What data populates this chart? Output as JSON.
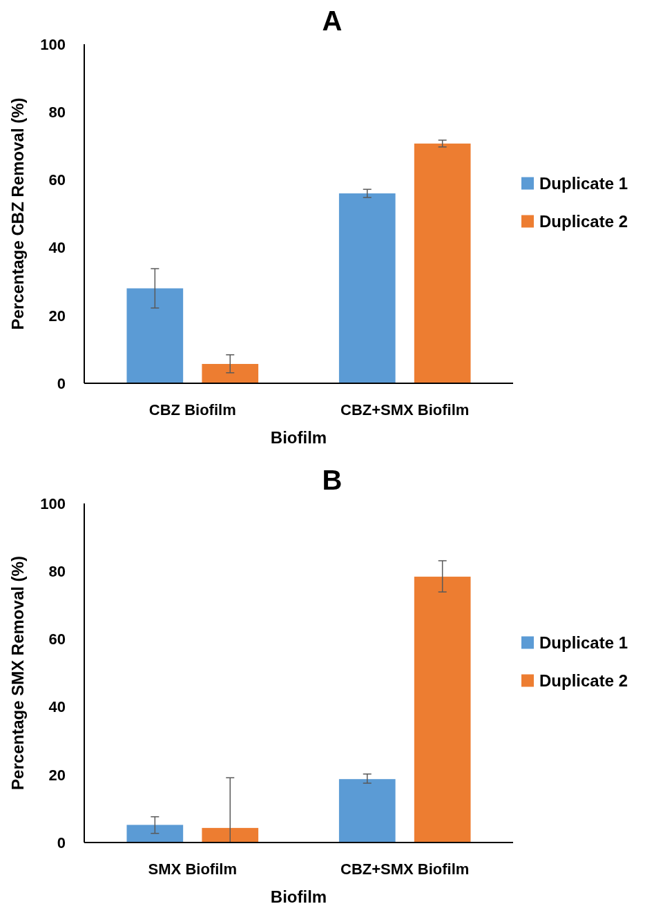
{
  "chart_data": [
    {
      "type": "bar",
      "title": "A",
      "xlabel": "Biofilm",
      "ylabel": "Percentage CBZ Removal (%)",
      "categories": [
        "CBZ Biofilm",
        "CBZ+SMX Biofilm"
      ],
      "ylim": [
        0,
        100
      ],
      "yticks": [
        0,
        20,
        40,
        60,
        80,
        100
      ],
      "grid": false,
      "legend": "right",
      "series": [
        {
          "name": "Duplicate 1",
          "color": "#5b9bd5",
          "values": [
            28,
            56
          ],
          "errors": [
            [
              22.2,
              33.8
            ],
            [
              54.8,
              57.2
            ]
          ]
        },
        {
          "name": "Duplicate 2",
          "color": "#ed7d31",
          "values": [
            5.7,
            70.7
          ],
          "errors": [
            [
              3.1,
              8.4
            ],
            [
              69.7,
              71.7
            ]
          ]
        }
      ]
    },
    {
      "type": "bar",
      "title": "B",
      "xlabel": "Biofilm",
      "ylabel": "Percentage SMX Removal (%)",
      "categories": [
        "SMX Biofilm",
        "CBZ+SMX Biofilm"
      ],
      "ylim": [
        0,
        100
      ],
      "yticks": [
        0,
        20,
        40,
        60,
        80,
        100
      ],
      "grid": false,
      "legend": "right",
      "series": [
        {
          "name": "Duplicate 1",
          "color": "#5b9bd5",
          "values": [
            5.2,
            18.7
          ],
          "errors": [
            [
              2.7,
              7.6
            ],
            [
              17.5,
              20.2
            ]
          ]
        },
        {
          "name": "Duplicate 2",
          "color": "#ed7d31",
          "values": [
            4.3,
            78.4
          ],
          "errors": [
            [
              0,
              19.1
            ],
            [
              73.9,
              83.1
            ]
          ]
        }
      ]
    }
  ]
}
